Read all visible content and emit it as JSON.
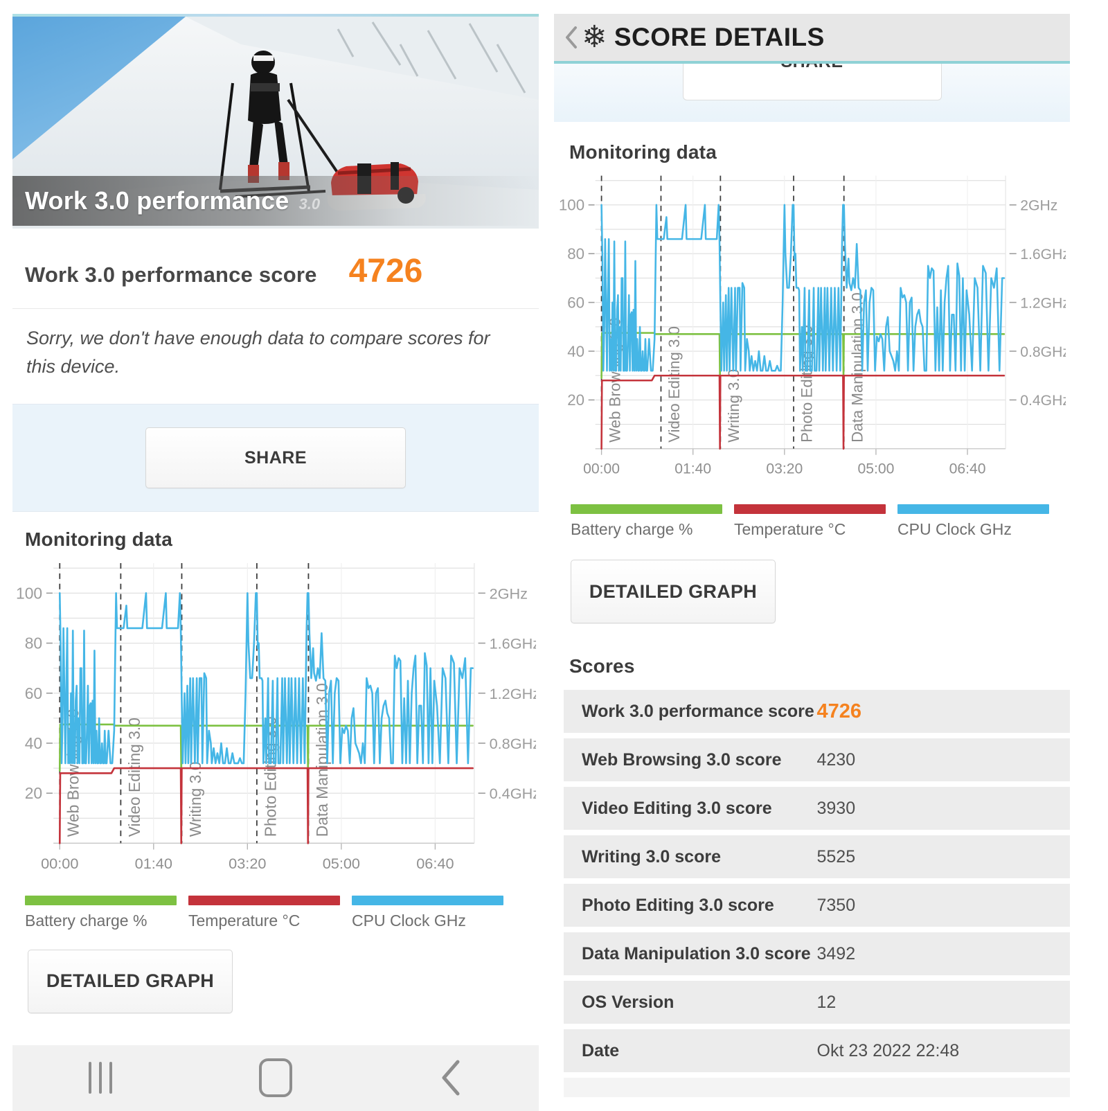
{
  "left": {
    "hero": {
      "title": "Work 3.0 performance",
      "version_tag": "3.0"
    },
    "score": {
      "label": "Work 3.0 performance score",
      "value": "4726"
    },
    "message": "Sorry, we don't have enough data to compare scores for this device.",
    "share_label": "SHARE",
    "monitoring_heading": "Monitoring data",
    "detailed_graph_label": "DETAILED GRAPH"
  },
  "right": {
    "header_title": "SCORE DETAILS",
    "share_label": "SHARE",
    "monitoring_heading": "Monitoring data",
    "detailed_graph_label": "DETAILED GRAPH",
    "scores_heading": "Scores",
    "rows": [
      {
        "label": "Work 3.0 performance score",
        "value": "4726"
      },
      {
        "label": "Web Browsing 3.0 score",
        "value": "4230"
      },
      {
        "label": "Video Editing 3.0 score",
        "value": "3930"
      },
      {
        "label": "Writing 3.0 score",
        "value": "5525"
      },
      {
        "label": "Photo Editing 3.0 score",
        "value": "7350"
      },
      {
        "label": "Data Manipulation 3.0 score",
        "value": "3492"
      },
      {
        "label": "OS Version",
        "value": "12"
      },
      {
        "label": "Date",
        "value": "Okt 23 2022 22:48"
      }
    ]
  },
  "legend": [
    {
      "label": "Battery charge %",
      "color": "#7dc142"
    },
    {
      "label": "Temperature °C",
      "color": "#c4333b"
    },
    {
      "label": "CPU Clock GHz",
      "color": "#45b6e6"
    }
  ],
  "colors": {
    "accent_orange": "#f5821f",
    "teal_line": "#8fd2d6",
    "header_gray": "#e7e7e7",
    "row_gray": "#ececec",
    "share_section_blue": "#eaf3fa"
  },
  "chart_data": {
    "type": "line",
    "title": "Monitoring data",
    "x_max": 440,
    "y_max": 112,
    "grid_step": 10,
    "x_ticks": [
      {
        "t": 0,
        "label": "00:00"
      },
      {
        "t": 100,
        "label": "01:40"
      },
      {
        "t": 200,
        "label": "03:20"
      },
      {
        "t": 300,
        "label": "05:00"
      },
      {
        "t": 400,
        "label": "06:40"
      }
    ],
    "y_ticks_left": [
      20,
      40,
      60,
      80,
      100
    ],
    "y_ticks_right": [
      {
        "v": 20,
        "label": "0.4GHz"
      },
      {
        "v": 40,
        "label": "0.8GHz"
      },
      {
        "v": 60,
        "label": "1.2GHz"
      },
      {
        "v": 80,
        "label": "1.6GHz"
      },
      {
        "v": 100,
        "label": "2GHz"
      }
    ],
    "sections": [
      {
        "label": "Web Browsing 3.0",
        "t": 0
      },
      {
        "label": "Video Editing 3.0",
        "t": 65
      },
      {
        "label": "Writing 3.0",
        "t": 130
      },
      {
        "label": "Photo Editing 3.0",
        "t": 210
      },
      {
        "label": "Data Manipulation 3.0",
        "t": 265
      }
    ],
    "series": [
      {
        "name": "Battery charge %",
        "color": "#7dc142",
        "points": [
          [
            0,
            29
          ],
          [
            0.5,
            47.5
          ],
          [
            57,
            47.5
          ],
          [
            59,
            47
          ],
          [
            129,
            47
          ],
          [
            129.5,
            29
          ],
          [
            130,
            47
          ],
          [
            264,
            47
          ],
          [
            264.5,
            29
          ],
          [
            265,
            47
          ],
          [
            440,
            47
          ]
        ]
      },
      {
        "name": "Temperature °C",
        "color": "#c4333b",
        "points": [
          [
            0,
            0
          ],
          [
            0.5,
            28
          ],
          [
            55,
            28
          ],
          [
            58,
            30
          ],
          [
            129,
            30
          ],
          [
            129.5,
            0
          ],
          [
            130,
            30
          ],
          [
            264,
            30
          ],
          [
            264.5,
            0
          ],
          [
            265,
            30
          ],
          [
            440,
            30
          ]
        ]
      },
      {
        "name": "CPU Clock GHz",
        "color": "#45b6e6",
        "points": [
          [
            0,
            100
          ],
          [
            1,
            78
          ],
          [
            2,
            32
          ],
          [
            3,
            50
          ],
          [
            4,
            86
          ],
          [
            5,
            60
          ],
          [
            6,
            32
          ],
          [
            7,
            62
          ],
          [
            8,
            86
          ],
          [
            9,
            32
          ],
          [
            10,
            45
          ],
          [
            11,
            32
          ],
          [
            12,
            60
          ],
          [
            13,
            32
          ],
          [
            14,
            85
          ],
          [
            15,
            32
          ],
          [
            16,
            32
          ],
          [
            17,
            57
          ],
          [
            18,
            63
          ],
          [
            19,
            32
          ],
          [
            20,
            50
          ],
          [
            21,
            32
          ],
          [
            22,
            70
          ],
          [
            23,
            70
          ],
          [
            24,
            32
          ],
          [
            25,
            32
          ],
          [
            26,
            85
          ],
          [
            27,
            32
          ],
          [
            28,
            32
          ],
          [
            29,
            45
          ],
          [
            30,
            63
          ],
          [
            31,
            32
          ],
          [
            32,
            55
          ],
          [
            33,
            56
          ],
          [
            34,
            32
          ],
          [
            35,
            57
          ],
          [
            36,
            32
          ],
          [
            37,
            77
          ],
          [
            38,
            32
          ],
          [
            39,
            45
          ],
          [
            40,
            32
          ],
          [
            41,
            32
          ],
          [
            42,
            50
          ],
          [
            43,
            32
          ],
          [
            44,
            32
          ],
          [
            45,
            40
          ],
          [
            46,
            32
          ],
          [
            47,
            32
          ],
          [
            48,
            45
          ],
          [
            49,
            32
          ],
          [
            50,
            32
          ],
          [
            52,
            45
          ],
          [
            54,
            32
          ],
          [
            56,
            32
          ],
          [
            58,
            45
          ],
          [
            60,
            100
          ],
          [
            61,
            86
          ],
          [
            63,
            86
          ],
          [
            65,
            86
          ],
          [
            68,
            86
          ],
          [
            71,
            95
          ],
          [
            72,
            86
          ],
          [
            76,
            86
          ],
          [
            80,
            86
          ],
          [
            84,
            86
          ],
          [
            88,
            86
          ],
          [
            92,
            100
          ],
          [
            93,
            86
          ],
          [
            97,
            86
          ],
          [
            101,
            86
          ],
          [
            105,
            86
          ],
          [
            109,
            86
          ],
          [
            113,
            100
          ],
          [
            114,
            86
          ],
          [
            118,
            86
          ],
          [
            122,
            86
          ],
          [
            126,
            86
          ],
          [
            128,
            100
          ],
          [
            129,
            86
          ],
          [
            130,
            58
          ],
          [
            131,
            32
          ],
          [
            133,
            60
          ],
          [
            134,
            32
          ],
          [
            136,
            63
          ],
          [
            137,
            32
          ],
          [
            139,
            66
          ],
          [
            140,
            32
          ],
          [
            142,
            66
          ],
          [
            144,
            32
          ],
          [
            146,
            66
          ],
          [
            147,
            32
          ],
          [
            149,
            66
          ],
          [
            151,
            66
          ],
          [
            152,
            32
          ],
          [
            154,
            68
          ],
          [
            156,
            66
          ],
          [
            157,
            32
          ],
          [
            159,
            45
          ],
          [
            161,
            40
          ],
          [
            162,
            32
          ],
          [
            164,
            38
          ],
          [
            166,
            32
          ],
          [
            168,
            36
          ],
          [
            170,
            32
          ],
          [
            172,
            40
          ],
          [
            174,
            32
          ],
          [
            176,
            32
          ],
          [
            178,
            38
          ],
          [
            180,
            32
          ],
          [
            182,
            32
          ],
          [
            184,
            36
          ],
          [
            186,
            32
          ],
          [
            188,
            32
          ],
          [
            190,
            32
          ],
          [
            192,
            34
          ],
          [
            194,
            32
          ],
          [
            196,
            32
          ],
          [
            198,
            60
          ],
          [
            200,
            100
          ],
          [
            201,
            80
          ],
          [
            203,
            66
          ],
          [
            205,
            66
          ],
          [
            207,
            80
          ],
          [
            209,
            100
          ],
          [
            210,
            100
          ],
          [
            211,
            78
          ],
          [
            212,
            80
          ],
          [
            213,
            66
          ],
          [
            215,
            66
          ],
          [
            216,
            65
          ],
          [
            217,
            32
          ],
          [
            219,
            50
          ],
          [
            220,
            32
          ],
          [
            222,
            66
          ],
          [
            223,
            32
          ],
          [
            225,
            32
          ],
          [
            227,
            65
          ],
          [
            228,
            32
          ],
          [
            230,
            32
          ],
          [
            232,
            66
          ],
          [
            233,
            32
          ],
          [
            235,
            32
          ],
          [
            237,
            66
          ],
          [
            238,
            32
          ],
          [
            240,
            66
          ],
          [
            242,
            32
          ],
          [
            244,
            66
          ],
          [
            245,
            32
          ],
          [
            247,
            66
          ],
          [
            249,
            32
          ],
          [
            251,
            66
          ],
          [
            253,
            32
          ],
          [
            255,
            66
          ],
          [
            257,
            32
          ],
          [
            259,
            66
          ],
          [
            261,
            32
          ],
          [
            263,
            85
          ],
          [
            264,
            100
          ],
          [
            265,
            100
          ],
          [
            266,
            84
          ],
          [
            268,
            66
          ],
          [
            270,
            78
          ],
          [
            271,
            68
          ],
          [
            273,
            65
          ],
          [
            275,
            70
          ],
          [
            277,
            66
          ],
          [
            279,
            84
          ],
          [
            281,
            66
          ],
          [
            283,
            65
          ],
          [
            285,
            32
          ],
          [
            287,
            60
          ],
          [
            289,
            65
          ],
          [
            291,
            32
          ],
          [
            293,
            60
          ],
          [
            295,
            66
          ],
          [
            297,
            65
          ],
          [
            299,
            32
          ],
          [
            301,
            46
          ],
          [
            303,
            44
          ],
          [
            305,
            47
          ],
          [
            307,
            45
          ],
          [
            309,
            32
          ],
          [
            311,
            50
          ],
          [
            313,
            54
          ],
          [
            315,
            40
          ],
          [
            317,
            38
          ],
          [
            319,
            36
          ],
          [
            321,
            32
          ],
          [
            323,
            40
          ],
          [
            325,
            32
          ],
          [
            327,
            66
          ],
          [
            329,
            62
          ],
          [
            331,
            63
          ],
          [
            333,
            60
          ],
          [
            335,
            32
          ],
          [
            337,
            60
          ],
          [
            339,
            62
          ],
          [
            341,
            32
          ],
          [
            343,
            50
          ],
          [
            345,
            55
          ],
          [
            347,
            57
          ],
          [
            349,
            52
          ],
          [
            351,
            50
          ],
          [
            353,
            32
          ],
          [
            355,
            32
          ],
          [
            357,
            75
          ],
          [
            359,
            70
          ],
          [
            361,
            74
          ],
          [
            363,
            73
          ],
          [
            365,
            32
          ],
          [
            367,
            58
          ],
          [
            369,
            32
          ],
          [
            371,
            65
          ],
          [
            373,
            32
          ],
          [
            375,
            60
          ],
          [
            377,
            70
          ],
          [
            379,
            75
          ],
          [
            381,
            32
          ],
          [
            383,
            55
          ],
          [
            385,
            55
          ],
          [
            387,
            32
          ],
          [
            389,
            76
          ],
          [
            391,
            71
          ],
          [
            393,
            32
          ],
          [
            395,
            70
          ],
          [
            397,
            32
          ],
          [
            399,
            65
          ],
          [
            402,
            55
          ],
          [
            405,
            32
          ],
          [
            408,
            70
          ],
          [
            411,
            66
          ],
          [
            414,
            32
          ],
          [
            417,
            75
          ],
          [
            420,
            72
          ],
          [
            423,
            32
          ],
          [
            426,
            70
          ],
          [
            429,
            66
          ],
          [
            432,
            74
          ],
          [
            435,
            32
          ],
          [
            438,
            70
          ],
          [
            440,
            70
          ]
        ]
      }
    ]
  }
}
